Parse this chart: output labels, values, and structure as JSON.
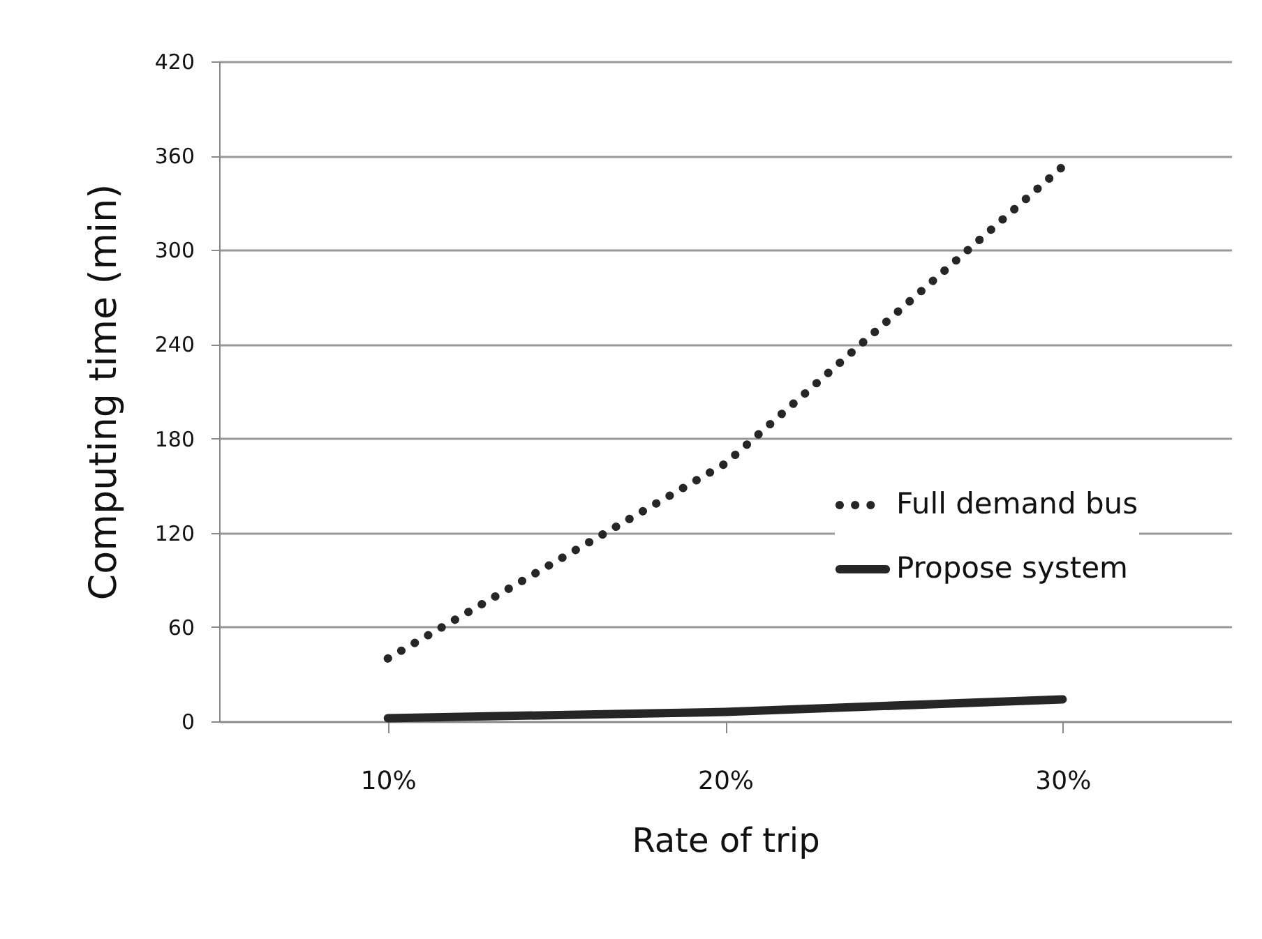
{
  "chart_data": {
    "type": "line",
    "xlabel": "Rate of trip",
    "ylabel": "Computing time (min)",
    "categories": [
      "10%",
      "20%",
      "30%"
    ],
    "series": [
      {
        "name": "Full demand bus",
        "color": "#262626",
        "line_style": "dotted",
        "values": [
          40,
          164,
          353
        ]
      },
      {
        "name": "Propose system",
        "color": "#262626",
        "line_style": "solid",
        "values": [
          2,
          6,
          14
        ]
      }
    ],
    "ylim": [
      0,
      420
    ],
    "yticks": [
      0,
      60,
      120,
      180,
      240,
      300,
      360,
      420
    ],
    "grid": "y",
    "legend": "right"
  }
}
